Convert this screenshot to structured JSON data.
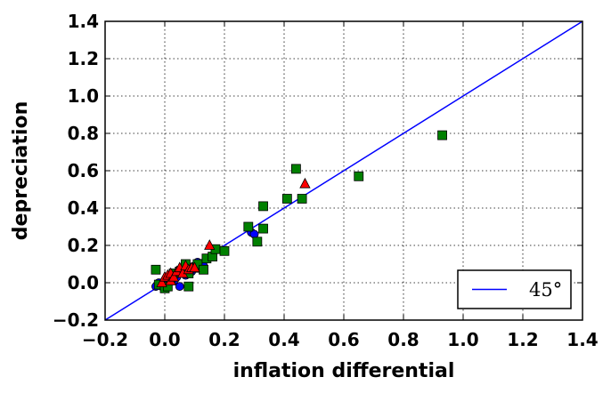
{
  "chart_data": {
    "type": "scatter",
    "xlabel": "inflation differential",
    "ylabel": "depreciation",
    "xlim": [
      -0.2,
      1.4
    ],
    "ylim": [
      -0.2,
      1.4
    ],
    "xticks": [
      "−0.2",
      "0.0",
      "0.2",
      "0.4",
      "0.6",
      "0.8",
      "1.0",
      "1.2",
      "1.4"
    ],
    "yticks": [
      "−0.2",
      "0.0",
      "0.2",
      "0.4",
      "0.6",
      "0.8",
      "1.0",
      "1.2",
      "1.4"
    ],
    "grid": true,
    "legend": {
      "placement": "lower-right",
      "entries": [
        {
          "label": "45°",
          "line_color": "#0000ff"
        }
      ]
    },
    "reference_line": {
      "label": "45°",
      "color": "#0000ff",
      "points": [
        [
          -0.2,
          -0.2
        ],
        [
          1.4,
          1.4
        ]
      ]
    },
    "series": [
      {
        "marker": "circle",
        "color": "#0000ff",
        "points": [
          [
            -0.03,
            -0.02
          ],
          [
            -0.02,
            0.0
          ],
          [
            -0.01,
            -0.02
          ],
          [
            0.0,
            0.01
          ],
          [
            0.0,
            -0.02
          ],
          [
            0.01,
            0.0
          ],
          [
            0.02,
            0.02
          ],
          [
            0.03,
            0.01
          ],
          [
            0.04,
            0.03
          ],
          [
            0.05,
            -0.02
          ],
          [
            0.06,
            0.05
          ],
          [
            0.07,
            0.04
          ],
          [
            0.08,
            0.07
          ],
          [
            0.09,
            0.06
          ],
          [
            0.1,
            0.09
          ],
          [
            0.11,
            0.11
          ],
          [
            0.12,
            0.1
          ],
          [
            0.13,
            0.09
          ],
          [
            0.29,
            0.27
          ],
          [
            0.3,
            0.26
          ]
        ]
      },
      {
        "marker": "square",
        "color": "#008000",
        "points": [
          [
            -0.03,
            0.07
          ],
          [
            -0.02,
            -0.01
          ],
          [
            0.0,
            -0.03
          ],
          [
            0.01,
            -0.02
          ],
          [
            0.02,
            0.02
          ],
          [
            0.03,
            0.05
          ],
          [
            0.05,
            0.06
          ],
          [
            0.07,
            0.1
          ],
          [
            0.08,
            -0.02
          ],
          [
            0.08,
            0.05
          ],
          [
            0.1,
            0.08
          ],
          [
            0.11,
            0.1
          ],
          [
            0.13,
            0.07
          ],
          [
            0.14,
            0.13
          ],
          [
            0.16,
            0.14
          ],
          [
            0.17,
            0.18
          ],
          [
            0.2,
            0.17
          ],
          [
            0.28,
            0.3
          ],
          [
            0.31,
            0.22
          ],
          [
            0.33,
            0.41
          ],
          [
            0.33,
            0.29
          ],
          [
            0.41,
            0.45
          ],
          [
            0.44,
            0.61
          ],
          [
            0.46,
            0.45
          ],
          [
            0.65,
            0.57
          ],
          [
            0.93,
            0.79
          ]
        ]
      },
      {
        "marker": "triangle",
        "color": "#ff0000",
        "points": [
          [
            -0.01,
            0.0
          ],
          [
            0.0,
            0.03
          ],
          [
            0.01,
            0.04
          ],
          [
            0.02,
            0.01
          ],
          [
            0.02,
            0.05
          ],
          [
            0.03,
            0.03
          ],
          [
            0.04,
            0.06
          ],
          [
            0.05,
            0.08
          ],
          [
            0.06,
            0.05
          ],
          [
            0.07,
            0.09
          ],
          [
            0.08,
            0.07
          ],
          [
            0.09,
            0.08
          ],
          [
            0.1,
            0.08
          ],
          [
            0.15,
            0.2
          ],
          [
            0.47,
            0.53
          ]
        ]
      }
    ]
  }
}
